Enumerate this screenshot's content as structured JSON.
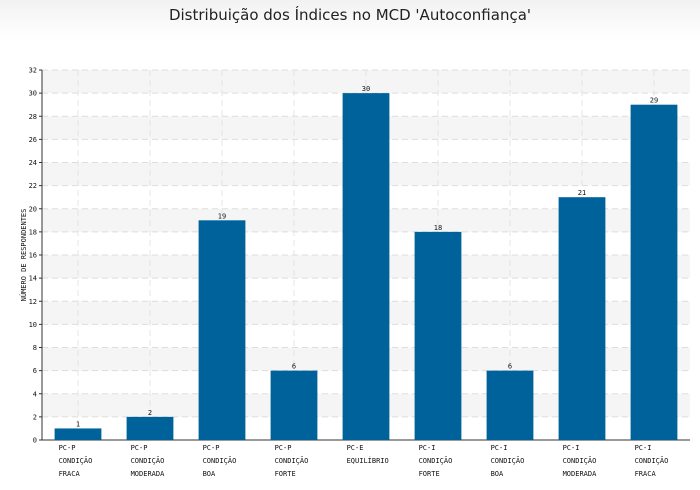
{
  "chart_data": {
    "type": "bar",
    "title": "Distribuição dos Índices no MCD 'Autoconfiança'",
    "xlabel": "",
    "ylabel": "NÚMERO DE RESPONDENTES",
    "ylim": [
      0,
      32
    ],
    "yticks": [
      "0",
      "2",
      "4",
      "6",
      "8",
      "10",
      "12",
      "14",
      "16",
      "18",
      "20",
      "22",
      "24",
      "26",
      "28",
      "30",
      "32"
    ],
    "grid": true,
    "bar_color": "#00629b",
    "categories": [
      [
        "PC-P",
        "CONDIÇÃO",
        "FRACA"
      ],
      [
        "PC-P",
        "CONDIÇÃO",
        "MODERADA"
      ],
      [
        "PC-P",
        "CONDIÇÃO",
        "BOA"
      ],
      [
        "PC-P",
        "CONDIÇÃO",
        "FORTE"
      ],
      [
        "PC-E",
        "EQUILÍBRIO"
      ],
      [
        "PC-I",
        "CONDIÇÃO",
        "FORTE"
      ],
      [
        "PC-I",
        "CONDIÇÃO",
        "BOA"
      ],
      [
        "PC-I",
        "CONDIÇÃO",
        "MODERADA"
      ],
      [
        "PC-I",
        "CONDIÇÃO",
        "FRACA"
      ]
    ],
    "values": [
      1,
      2,
      19,
      6,
      30,
      18,
      6,
      21,
      29
    ],
    "data_labels": [
      "1",
      "2",
      "19",
      "6",
      "30",
      "18",
      "6",
      "21",
      "29"
    ]
  }
}
